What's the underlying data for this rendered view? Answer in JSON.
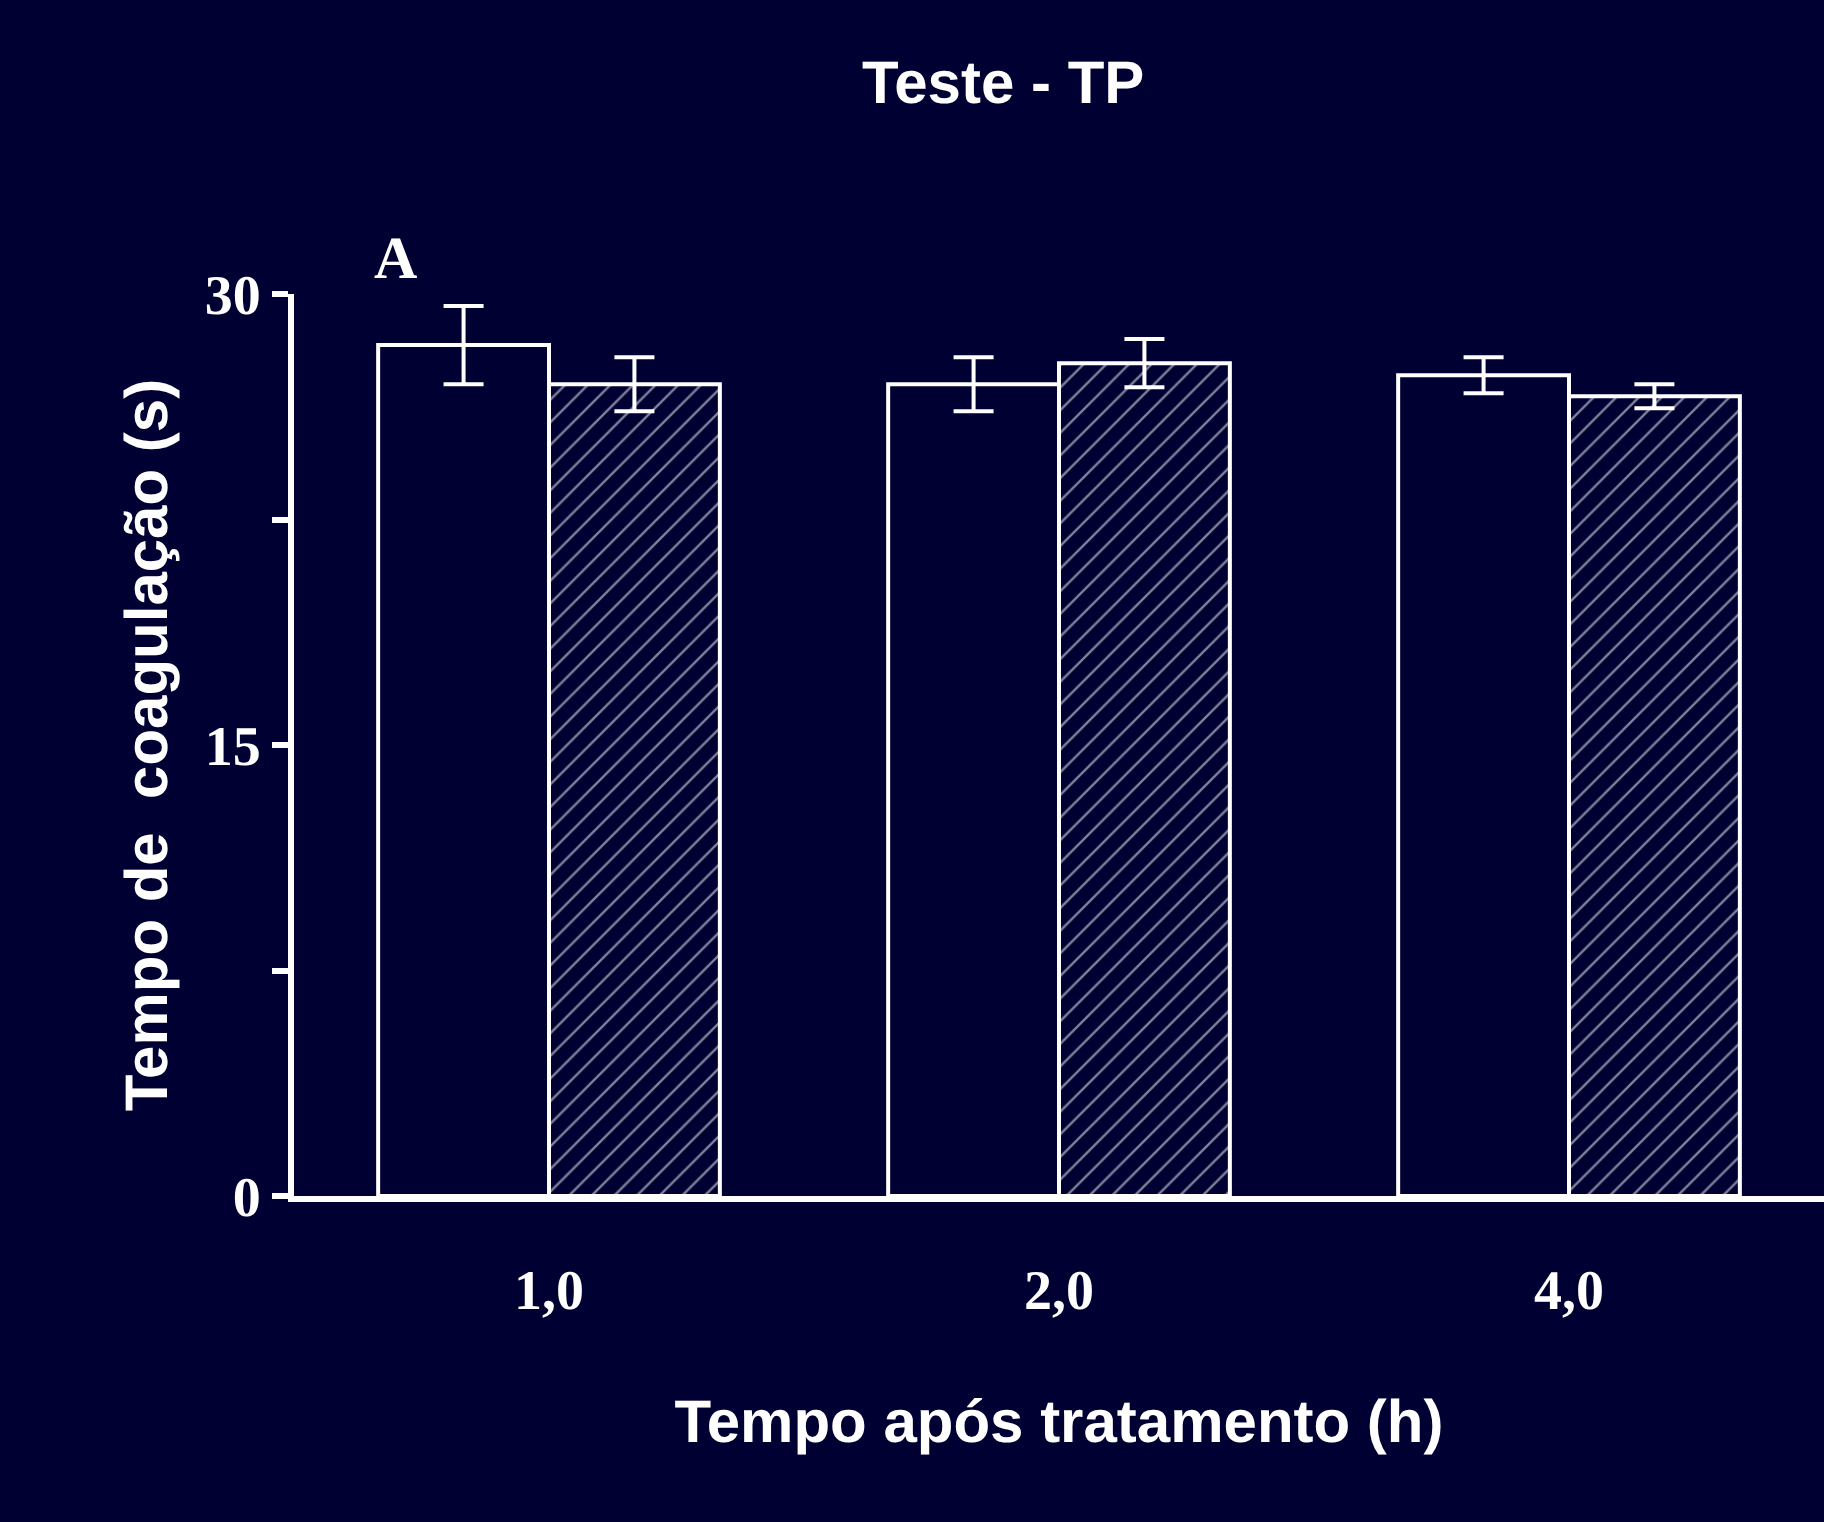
{
  "chart_data": {
    "type": "bar",
    "title": "Teste - TP",
    "xlabel": "Tempo após tratamento (h)",
    "ylabel": "Tempo de  coagulação (s)",
    "categories": [
      "1,0",
      "2,0",
      "4,0"
    ],
    "series": [
      {
        "color": "#ffffff",
        "values": [
          28.3,
          27.0,
          27.3
        ],
        "errors": [
          1.3,
          0.9,
          0.6
        ]
      },
      {
        "color": "#ffffff",
        "values": [
          27.0,
          27.7,
          26.6
        ],
        "errors": [
          0.9,
          0.8,
          0.4
        ]
      }
    ],
    "ylim": [
      0,
      30
    ],
    "yticks": [
      0,
      {
        "value": 7.5,
        "label": null
      },
      15,
      {
        "value": 22.5,
        "label": null
      },
      30
    ],
    "annotations": [
      "A"
    ]
  }
}
